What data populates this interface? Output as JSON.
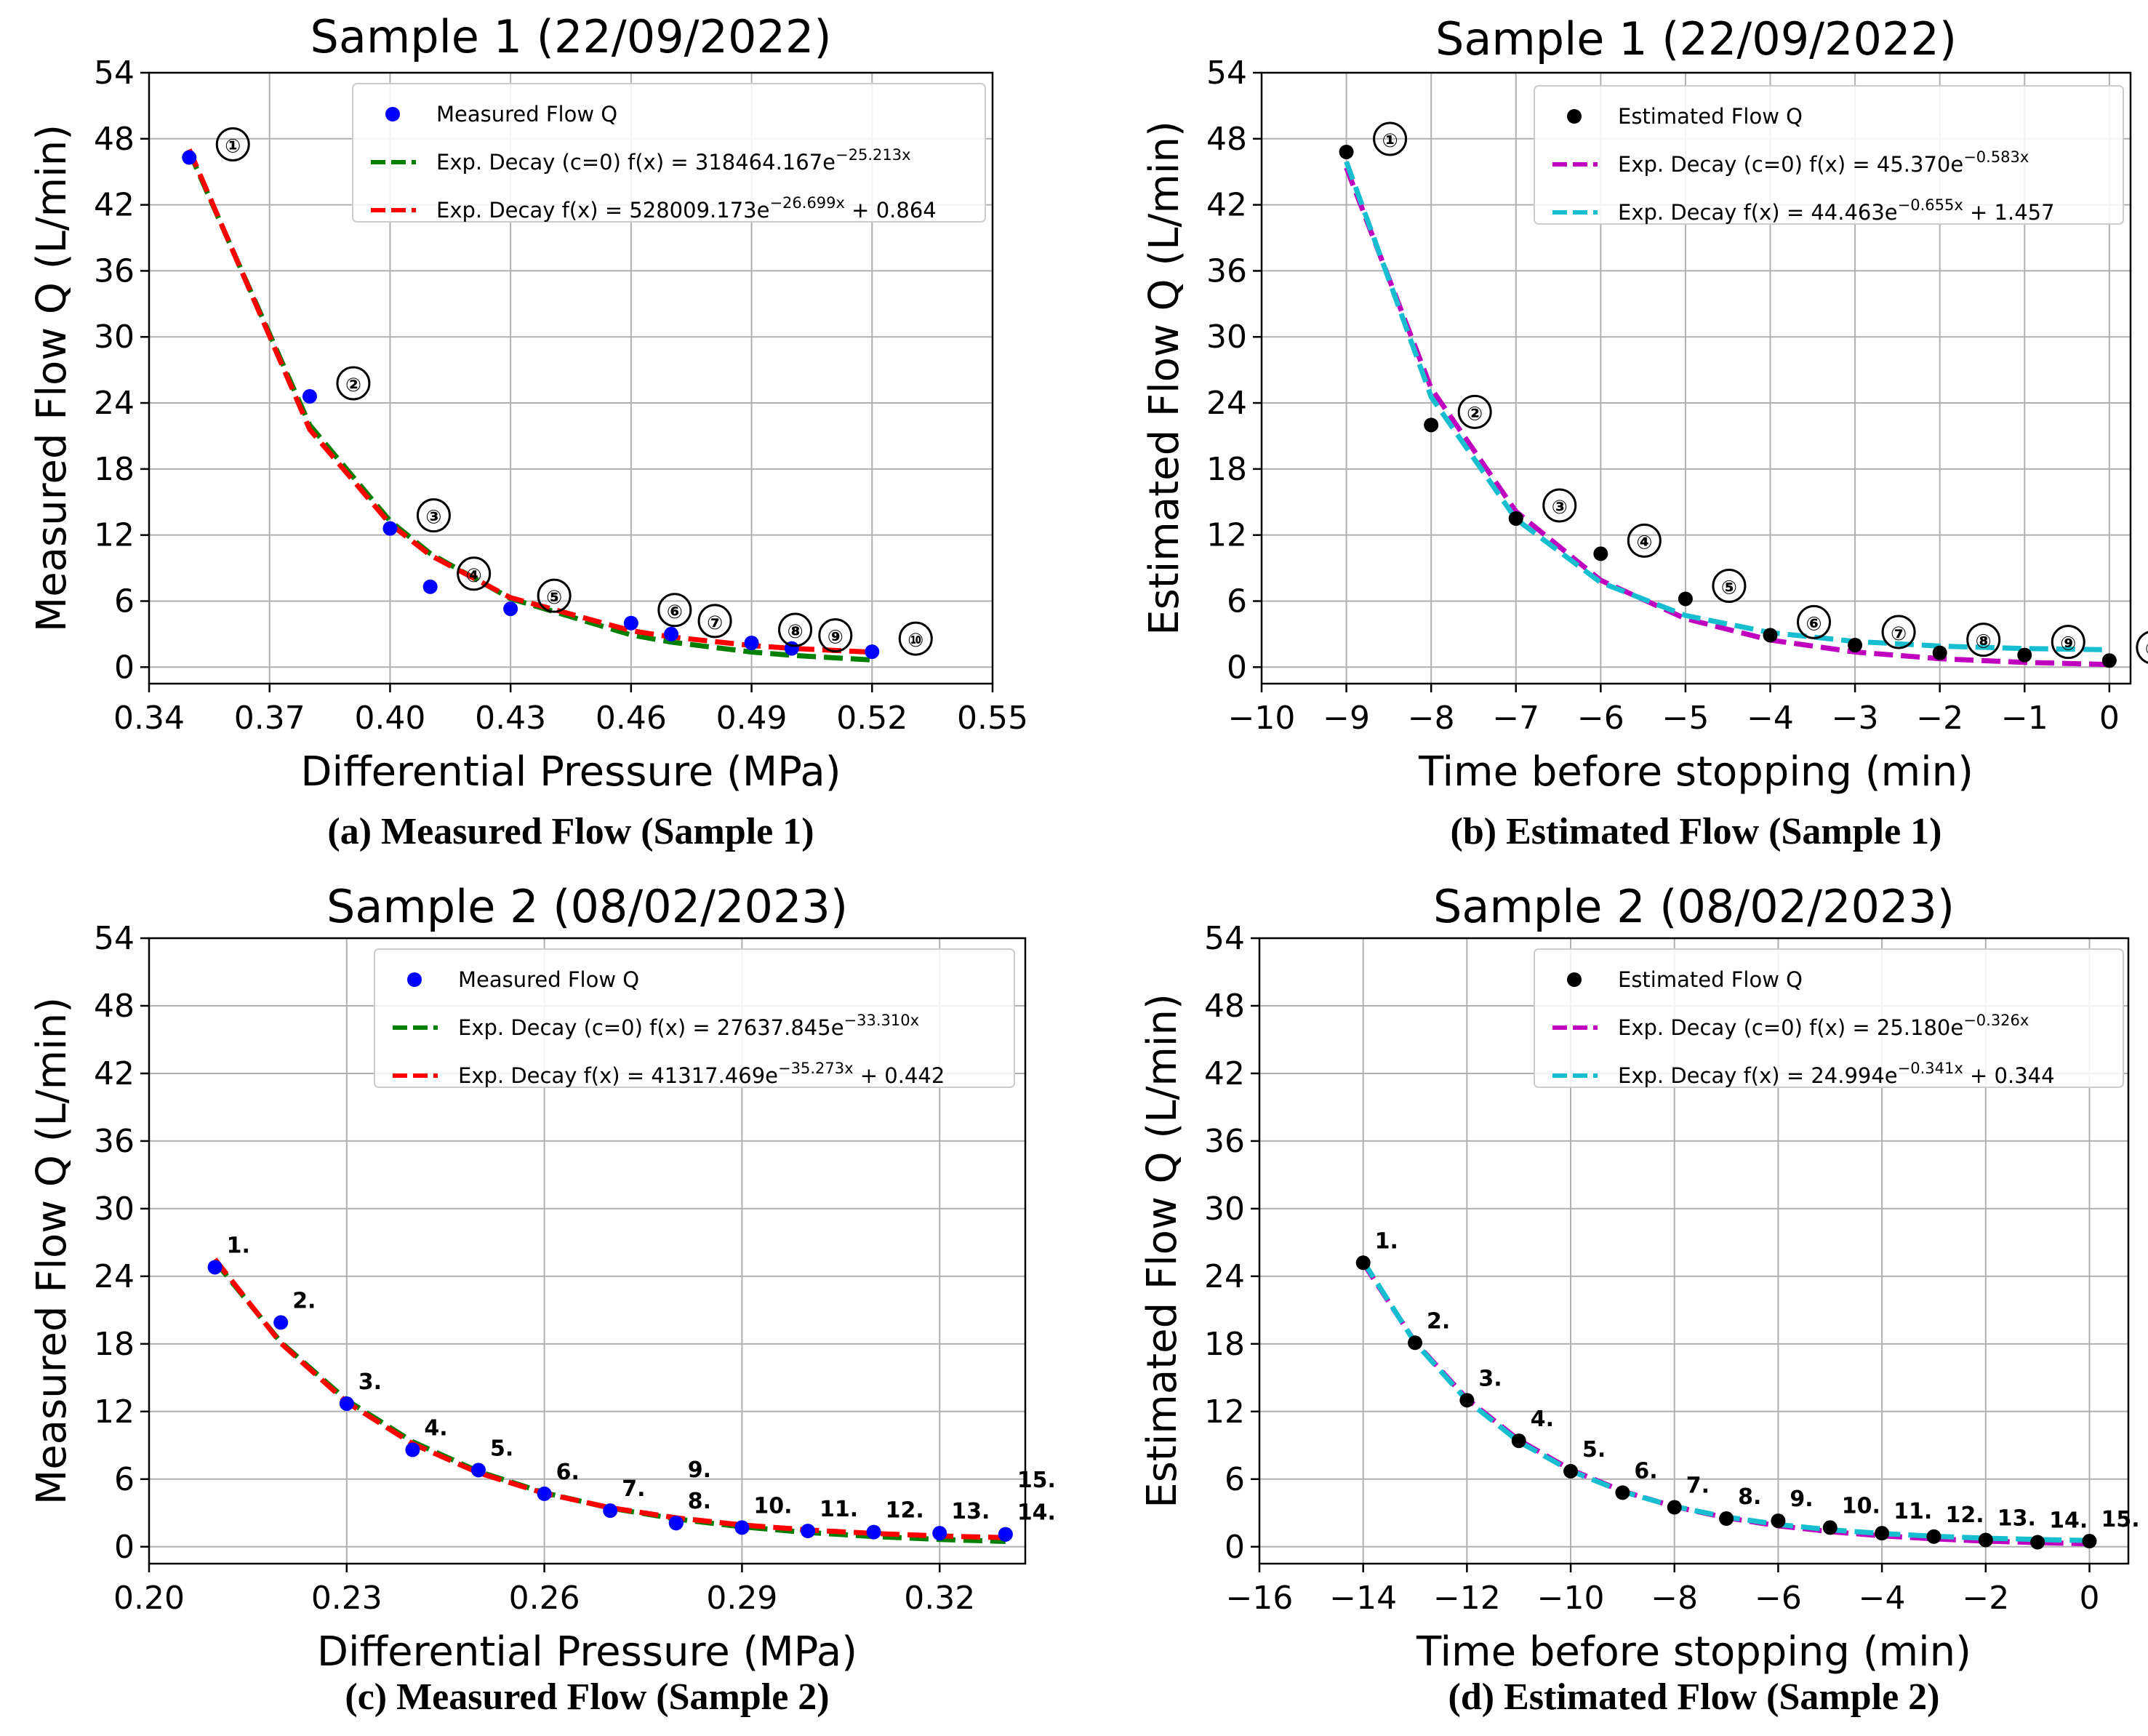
{
  "colors": {
    "measured": "#0000ff",
    "estimated": "#000000",
    "green": "#008000",
    "red": "#ff0000",
    "magenta": "#bf00bf",
    "cyan": "#17becf",
    "grid": "#b0b0b0"
  },
  "chart_data": [
    {
      "type": "scatter",
      "title": "Sample 1 (22/09/2022)",
      "caption": "(a) Measured Flow (Sample 1)",
      "xlabel": "Differential Pressure (MPa)",
      "ylabel": "Measured Flow Q (L/min)",
      "xlim": [
        0.34,
        0.55
      ],
      "ylim": [
        -1.5,
        54
      ],
      "xticks": [
        0.34,
        0.37,
        0.4,
        0.43,
        0.46,
        0.49,
        0.52,
        0.55
      ],
      "xtick_labels": [
        "0.34",
        "0.37",
        "0.40",
        "0.43",
        "0.46",
        "0.49",
        "0.52",
        "0.55"
      ],
      "yticks": [
        0,
        6,
        12,
        18,
        24,
        30,
        36,
        42,
        48,
        54
      ],
      "ytick_labels": [
        "0",
        "6",
        "12",
        "18",
        "24",
        "30",
        "36",
        "42",
        "48",
        "54"
      ],
      "grid": true,
      "legend_position": "top-right",
      "point_color": "#0000ff",
      "annotation_style": "circled",
      "points": {
        "name": "Measured Flow Q",
        "x": [
          0.35,
          0.38,
          0.4,
          0.41,
          0.43,
          0.46,
          0.47,
          0.49,
          0.5,
          0.52
        ],
        "y": [
          46.3,
          24.6,
          12.6,
          7.3,
          5.3,
          4.0,
          3.0,
          2.2,
          1.7,
          1.4
        ]
      },
      "annotations": [
        {
          "label": "①",
          "x": 0.35,
          "y": 46.3
        },
        {
          "label": "②",
          "x": 0.38,
          "y": 24.6
        },
        {
          "label": "③",
          "x": 0.4,
          "y": 12.6
        },
        {
          "label": "④",
          "x": 0.41,
          "y": 7.3
        },
        {
          "label": "⑤",
          "x": 0.43,
          "y": 5.3
        },
        {
          "label": "⑥",
          "x": 0.46,
          "y": 4.0
        },
        {
          "label": "⑦",
          "x": 0.47,
          "y": 3.0
        },
        {
          "label": "⑧",
          "x": 0.49,
          "y": 2.2
        },
        {
          "label": "⑨",
          "x": 0.5,
          "y": 1.7
        },
        {
          "label": "⑩",
          "x": 0.52,
          "y": 1.4
        }
      ],
      "fits": [
        {
          "name": "Exp. Decay (c=0) f(x) = 318464.167e^(−25.213x)",
          "color": "#008000",
          "a": 318464.167,
          "b": -25.213,
          "c": 0,
          "x": [
            0.35,
            0.38,
            0.4,
            0.41,
            0.43,
            0.46,
            0.47,
            0.49,
            0.5,
            0.52
          ]
        },
        {
          "name": "Exp. Decay f(x) = 528009.173e^(−26.699x) + 0.864",
          "color": "#ff0000",
          "a": 528009.173,
          "b": -26.699,
          "c": 0.864,
          "x": [
            0.35,
            0.38,
            0.4,
            0.41,
            0.43,
            0.46,
            0.47,
            0.49,
            0.5,
            0.52
          ]
        }
      ],
      "legend": [
        {
          "kind": "marker",
          "text": "Measured Flow Q",
          "color": "#0000ff"
        },
        {
          "kind": "line",
          "text": "Exp. Decay (c=0) f(x) = 318464.167e",
          "sup": "−25.213x",
          "tail": "",
          "color": "#008000"
        },
        {
          "kind": "line",
          "text": "Exp. Decay f(x) = 528009.173e",
          "sup": "−26.699x",
          "tail": " + 0.864",
          "color": "#ff0000"
        }
      ]
    },
    {
      "type": "scatter",
      "title": "Sample 1 (22/09/2022)",
      "caption": "(b) Estimated Flow (Sample 1)",
      "xlabel": "Time before stopping (min)",
      "ylabel": "Estimated Flow Q (L/min)",
      "xlim": [
        -10,
        0.25
      ],
      "ylim": [
        -1.5,
        54
      ],
      "xticks": [
        -10,
        -9,
        -8,
        -7,
        -6,
        -5,
        -4,
        -3,
        -2,
        -1,
        0
      ],
      "xtick_labels": [
        "−10",
        "−9",
        "−8",
        "−7",
        "−6",
        "−5",
        "−4",
        "−3",
        "−2",
        "−1",
        "0"
      ],
      "yticks": [
        0,
        6,
        12,
        18,
        24,
        30,
        36,
        42,
        48,
        54
      ],
      "ytick_labels": [
        "0",
        "6",
        "12",
        "18",
        "24",
        "30",
        "36",
        "42",
        "48",
        "54"
      ],
      "grid": true,
      "legend_position": "top-right",
      "point_color": "#000000",
      "annotation_style": "circled",
      "points": {
        "name": "Estimated Flow Q",
        "x": [
          -9,
          -8,
          -7,
          -6,
          -5,
          -4,
          -3,
          -2,
          -1,
          0
        ],
        "y": [
          46.8,
          22.0,
          13.5,
          10.3,
          6.2,
          2.9,
          2.0,
          1.3,
          1.1,
          0.6
        ]
      },
      "annotations": [
        {
          "label": "①",
          "x": -9,
          "y": 46.8
        },
        {
          "label": "②",
          "x": -8,
          "y": 22.0
        },
        {
          "label": "③",
          "x": -7,
          "y": 13.5
        },
        {
          "label": "④",
          "x": -6,
          "y": 10.3
        },
        {
          "label": "⑤",
          "x": -5,
          "y": 6.2
        },
        {
          "label": "⑥",
          "x": -4,
          "y": 2.9
        },
        {
          "label": "⑦",
          "x": -3,
          "y": 2.0
        },
        {
          "label": "⑧",
          "x": -2,
          "y": 1.3
        },
        {
          "label": "⑨",
          "x": -1,
          "y": 1.1
        },
        {
          "label": "⑩",
          "x": 0,
          "y": 0.6
        }
      ],
      "fits": [
        {
          "name": "Exp. Decay (c=0) f(x) = 45.370e^(−0.583x)",
          "color": "#bf00bf",
          "a": 45.37,
          "b": -0.583,
          "c": 0,
          "x": [
            -9,
            -8,
            -7,
            -6,
            -5,
            -4,
            -3,
            -2,
            -1,
            0
          ],
          "shift": 9
        },
        {
          "name": "Exp. Decay f(x) = 44.463e^(−0.655x) + 1.457",
          "color": "#17becf",
          "a": 44.463,
          "b": -0.655,
          "c": 1.457,
          "x": [
            -9,
            -8,
            -7,
            -6,
            -5,
            -4,
            -3,
            -2,
            -1,
            0
          ],
          "shift": 9
        }
      ],
      "legend": [
        {
          "kind": "marker",
          "text": "Estimated Flow Q",
          "color": "#000000"
        },
        {
          "kind": "line",
          "text": "Exp. Decay (c=0) f(x) = 45.370e",
          "sup": "−0.583x",
          "tail": "",
          "color": "#bf00bf"
        },
        {
          "kind": "line",
          "text": "Exp. Decay f(x) = 44.463e",
          "sup": "−0.655x",
          "tail": " + 1.457",
          "color": "#17becf"
        }
      ]
    },
    {
      "type": "scatter",
      "title": "Sample 2 (08/02/2023)",
      "caption": "(c) Measured Flow (Sample 2)",
      "xlabel": "Differential Pressure (MPa)",
      "ylabel": "Measured Flow Q (L/min)",
      "xlim": [
        0.2,
        0.333
      ],
      "ylim": [
        -1.5,
        54
      ],
      "xticks": [
        0.2,
        0.23,
        0.26,
        0.29,
        0.32
      ],
      "xtick_labels": [
        "0.20",
        "0.23",
        "0.26",
        "0.29",
        "0.32"
      ],
      "yticks": [
        0,
        6,
        12,
        18,
        24,
        30,
        36,
        42,
        48,
        54
      ],
      "ytick_labels": [
        "0",
        "6",
        "12",
        "18",
        "24",
        "30",
        "36",
        "42",
        "48",
        "54"
      ],
      "grid": true,
      "legend_position": "top-right",
      "point_color": "#0000ff",
      "annotation_style": "dot",
      "points": {
        "name": "Measured Flow Q",
        "x": [
          0.21,
          0.22,
          0.23,
          0.24,
          0.25,
          0.26,
          0.27,
          0.28,
          0.28,
          0.29,
          0.3,
          0.31,
          0.32,
          0.33,
          0.33
        ],
        "y": [
          24.8,
          19.9,
          12.7,
          8.6,
          6.8,
          4.7,
          3.2,
          2.1,
          2.1,
          1.7,
          1.4,
          1.3,
          1.2,
          1.1,
          1.1
        ]
      },
      "annotations": [
        {
          "label": "1.",
          "x": 0.21,
          "y": 24.8
        },
        {
          "label": "2.",
          "x": 0.22,
          "y": 19.9
        },
        {
          "label": "3.",
          "x": 0.23,
          "y": 12.7
        },
        {
          "label": "4.",
          "x": 0.24,
          "y": 8.6
        },
        {
          "label": "5.",
          "x": 0.25,
          "y": 6.8
        },
        {
          "label": "6.",
          "x": 0.26,
          "y": 4.7
        },
        {
          "label": "7.",
          "x": 0.27,
          "y": 3.2
        },
        {
          "label": "8.",
          "x": 0.28,
          "y": 2.1
        },
        {
          "label": "9.",
          "x": 0.28,
          "y": 4.9
        },
        {
          "label": "10.",
          "x": 0.29,
          "y": 1.7
        },
        {
          "label": "11.",
          "x": 0.3,
          "y": 1.4
        },
        {
          "label": "12.",
          "x": 0.31,
          "y": 1.3
        },
        {
          "label": "13.",
          "x": 0.32,
          "y": 1.2
        },
        {
          "label": "14.",
          "x": 0.33,
          "y": 1.1
        },
        {
          "label": "15.",
          "x": 0.33,
          "y": 4.0
        }
      ],
      "fits": [
        {
          "name": "Exp. Decay (c=0) f(x) = 27637.845e^(−33.310x)",
          "color": "#008000",
          "a": 27637.845,
          "b": -33.31,
          "c": 0,
          "x": [
            0.21,
            0.22,
            0.23,
            0.24,
            0.25,
            0.26,
            0.27,
            0.28,
            0.29,
            0.3,
            0.31,
            0.32,
            0.33
          ]
        },
        {
          "name": "Exp. Decay f(x) = 41317.469e^(−35.273x) + 0.442",
          "color": "#ff0000",
          "a": 41317.469,
          "b": -35.273,
          "c": 0.442,
          "x": [
            0.21,
            0.22,
            0.23,
            0.24,
            0.25,
            0.26,
            0.27,
            0.28,
            0.29,
            0.3,
            0.31,
            0.32,
            0.33
          ]
        }
      ],
      "legend": [
        {
          "kind": "marker",
          "text": "Measured Flow Q",
          "color": "#0000ff"
        },
        {
          "kind": "line",
          "text": "Exp. Decay (c=0) f(x) = 27637.845e",
          "sup": "−33.310x",
          "tail": "",
          "color": "#008000"
        },
        {
          "kind": "line",
          "text": "Exp. Decay f(x) = 41317.469e",
          "sup": "−35.273x",
          "tail": " + 0.442",
          "color": "#ff0000"
        }
      ]
    },
    {
      "type": "scatter",
      "title": "Sample 2 (08/02/2023)",
      "caption": "(d) Estimated Flow (Sample 2)",
      "xlabel": "Time before stopping (min)",
      "ylabel": "Estimated Flow Q (L/min)",
      "xlim": [
        -16,
        0.75
      ],
      "ylim": [
        -1.5,
        54
      ],
      "xticks": [
        -16,
        -14,
        -12,
        -10,
        -8,
        -6,
        -4,
        -2,
        0
      ],
      "xtick_labels": [
        "−16",
        "−14",
        "−12",
        "−10",
        "−8",
        "−6",
        "−4",
        "−2",
        "0"
      ],
      "yticks": [
        0,
        6,
        12,
        18,
        24,
        30,
        36,
        42,
        48,
        54
      ],
      "ytick_labels": [
        "0",
        "6",
        "12",
        "18",
        "24",
        "30",
        "36",
        "42",
        "48",
        "54"
      ],
      "grid": true,
      "legend_position": "top-right",
      "point_color": "#000000",
      "annotation_style": "dot",
      "points": {
        "name": "Estimated Flow Q",
        "x": [
          -14,
          -13,
          -12,
          -11,
          -10,
          -9,
          -8,
          -7,
          -6,
          -5,
          -4,
          -3,
          -2,
          -1,
          0
        ],
        "y": [
          25.2,
          18.1,
          13.0,
          9.4,
          6.7,
          4.8,
          3.5,
          2.5,
          2.3,
          1.7,
          1.2,
          0.9,
          0.6,
          0.4,
          0.5
        ]
      },
      "annotations": [
        {
          "label": "1.",
          "x": -14,
          "y": 25.2
        },
        {
          "label": "2.",
          "x": -13,
          "y": 18.1
        },
        {
          "label": "3.",
          "x": -12,
          "y": 13.0
        },
        {
          "label": "4.",
          "x": -11,
          "y": 9.4
        },
        {
          "label": "5.",
          "x": -10,
          "y": 6.7
        },
        {
          "label": "6.",
          "x": -9,
          "y": 4.8
        },
        {
          "label": "7.",
          "x": -8,
          "y": 3.5
        },
        {
          "label": "8.",
          "x": -7,
          "y": 2.5
        },
        {
          "label": "9.",
          "x": -6,
          "y": 2.3
        },
        {
          "label": "10.",
          "x": -5,
          "y": 1.7
        },
        {
          "label": "11.",
          "x": -4,
          "y": 1.2
        },
        {
          "label": "12.",
          "x": -3,
          "y": 0.9
        },
        {
          "label": "13.",
          "x": -2,
          "y": 0.6
        },
        {
          "label": "14.",
          "x": -1,
          "y": 0.4
        },
        {
          "label": "15.",
          "x": 0,
          "y": 0.5
        }
      ],
      "fits": [
        {
          "name": "Exp. Decay (c=0) f(x) = 25.180e^(−0.326x)",
          "color": "#bf00bf",
          "a": 25.18,
          "b": -0.326,
          "c": 0,
          "x": [
            -14,
            -13,
            -12,
            -11,
            -10,
            -9,
            -8,
            -7,
            -6,
            -5,
            -4,
            -3,
            -2,
            -1,
            0
          ],
          "shift": 14
        },
        {
          "name": "Exp. Decay f(x) = 24.994e^(−0.341x) + 0.344",
          "color": "#17becf",
          "a": 24.994,
          "b": -0.341,
          "c": 0.344,
          "x": [
            -14,
            -13,
            -12,
            -11,
            -10,
            -9,
            -8,
            -7,
            -6,
            -5,
            -4,
            -3,
            -2,
            -1,
            0
          ],
          "shift": 14
        }
      ],
      "legend": [
        {
          "kind": "marker",
          "text": "Estimated Flow Q",
          "color": "#000000"
        },
        {
          "kind": "line",
          "text": "Exp. Decay (c=0) f(x) = 25.180e",
          "sup": "−0.326x",
          "tail": "",
          "color": "#bf00bf"
        },
        {
          "kind": "line",
          "text": "Exp. Decay f(x) = 24.994e",
          "sup": "−0.341x",
          "tail": " + 0.344",
          "color": "#17becf"
        }
      ]
    }
  ]
}
